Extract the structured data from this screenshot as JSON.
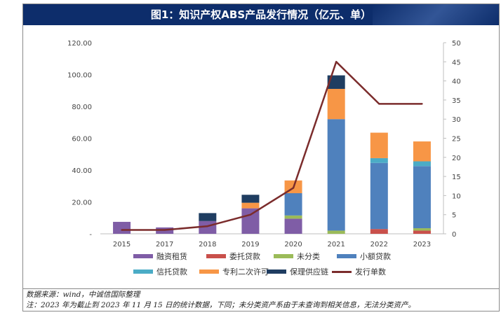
{
  "title": "图1：知识产权ABS产品发行情况（亿元、单）",
  "colors": {
    "title_bg": "#0d2d6b",
    "series": [
      "#7f5da6",
      "#c9504b",
      "#9bbb59",
      "#4f81bd",
      "#4bacc6",
      "#f79646",
      "#1f3d61"
    ],
    "line": "#7b2c2c"
  },
  "chart_data": {
    "type": "bar",
    "stacked": true,
    "categories": [
      "2015",
      "2017",
      "2018",
      "2019",
      "2020",
      "2021",
      "2022",
      "2023"
    ],
    "y_left": {
      "ylim": [
        0,
        120
      ],
      "ticks": [
        "-",
        "20.00",
        "40.00",
        "60.00",
        "80.00",
        "100.00",
        "120.00"
      ]
    },
    "y_right": {
      "ylim": [
        0,
        50
      ],
      "ticks": [
        "0",
        "5",
        "10",
        "15",
        "20",
        "25",
        "30",
        "35",
        "40",
        "45",
        "50"
      ]
    },
    "series": [
      {
        "name": "融资租赁",
        "values": [
          7.5,
          4.0,
          8.0,
          16.0,
          9.5,
          0,
          0,
          0
        ]
      },
      {
        "name": "委托贷款",
        "values": [
          0,
          0,
          0,
          0,
          0,
          0,
          3.0,
          2.0
        ]
      },
      {
        "name": "未分类",
        "values": [
          0,
          0,
          0,
          0,
          2.0,
          2.0,
          0,
          1.5
        ]
      },
      {
        "name": "小额贷款",
        "values": [
          0,
          0,
          0,
          0,
          14.0,
          70.0,
          41.5,
          39.0
        ]
      },
      {
        "name": "信托贷款",
        "values": [
          0,
          0,
          0,
          0,
          0,
          0,
          3.0,
          3.0
        ]
      },
      {
        "name": "专利二次许可",
        "values": [
          0,
          0,
          0,
          3.5,
          8.0,
          19.0,
          16.0,
          12.5
        ]
      },
      {
        "name": "保理供应链",
        "values": [
          0,
          0,
          5.0,
          5.0,
          0,
          8.5,
          0,
          0
        ]
      }
    ],
    "line_series": {
      "name": "发行单数",
      "axis": "right",
      "values": [
        1,
        1,
        2,
        5,
        12,
        45,
        34,
        34
      ]
    },
    "grid": false,
    "legend": "bottom"
  },
  "legend_labels": [
    "融资租赁",
    "委托贷款",
    "未分类",
    "小额贷款",
    "信托贷款",
    "专利二次许可",
    "保理供应链",
    "发行单数"
  ],
  "notes": {
    "source": "数据来源：wind，中诚信国际整理",
    "footnote": "注：2023 年为截止到 2023 年 11 月 15 日的统计数据，下同；未分类资产系由于未查询到相关信息，无法分类资产。"
  }
}
